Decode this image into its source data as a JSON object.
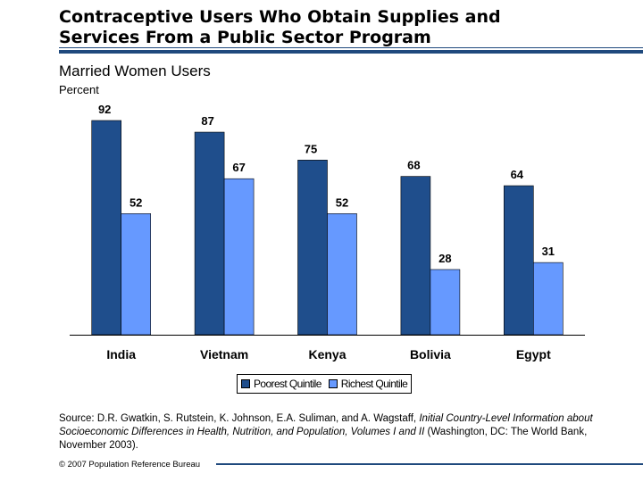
{
  "header": {
    "title_line1": "Contraceptive Users Who Obtain Supplies and",
    "title_line2": "Services From a Public Sector Program"
  },
  "chart_data": {
    "type": "bar",
    "title": "Married Women Users",
    "ylabel": "Percent",
    "categories": [
      "India",
      "Vietnam",
      "Kenya",
      "Bolivia",
      "Egypt"
    ],
    "series": [
      {
        "name": "Poorest Quintile",
        "color": "#1f4e8c",
        "values": [
          92,
          87,
          75,
          68,
          64
        ]
      },
      {
        "name": "Richest Quintile",
        "color": "#6699ff",
        "values": [
          52,
          67,
          52,
          28,
          31
        ]
      }
    ],
    "ylim": [
      0,
      100
    ],
    "grid": false,
    "legend_position": "bottom"
  },
  "source": {
    "prefix": "Source: D.R. Gwatkin, S. Rutstein, K. Johnson, E.A. Suliman, and A. Wagstaff, ",
    "italic": "Initial Country-Level Information about Socioeconomic Differences in Health, Nutrition, and Population, Volumes I and II",
    "suffix": " (Washington, DC: The World Bank, November 2003)."
  },
  "footer": {
    "copyright": "© 2007 Population Reference Bureau"
  }
}
